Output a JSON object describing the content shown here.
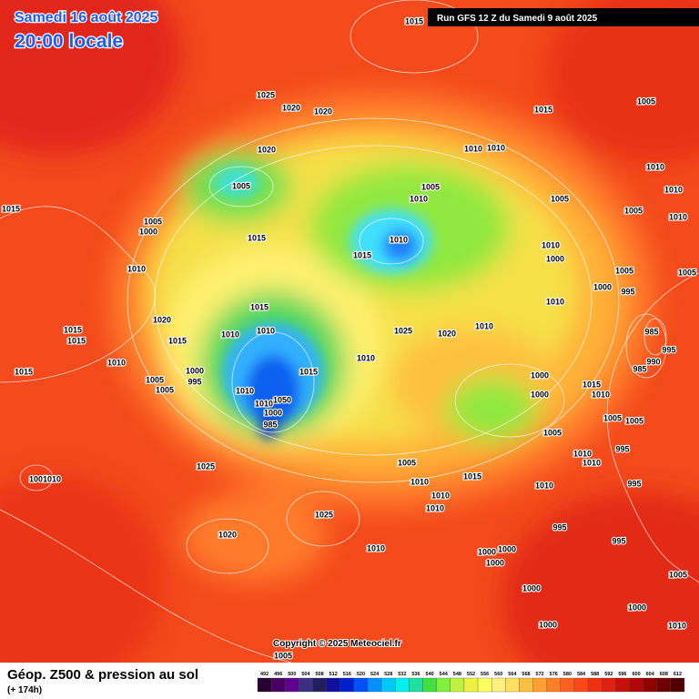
{
  "header": {
    "date": "Samedi 16 août 2025",
    "time": "20:00 locale",
    "run": "Run GFS 12 Z du Samedi 9 août 2025"
  },
  "map": {
    "isobar_labels": [
      "1015",
      "1025",
      "1020",
      "1020",
      "1015",
      "1005",
      "1020",
      "1010",
      "1010",
      "1010",
      "1005",
      "1005",
      "1010",
      "1005",
      "1010",
      "1015",
      "1005",
      "1010",
      "1005",
      "1000",
      "1015",
      "1010",
      "1010",
      "1015",
      "1000",
      "1010",
      "1005",
      "1005",
      "1000",
      "995",
      "1010",
      "1015",
      "1020",
      "1010",
      "1015",
      "1015",
      "1025",
      "1020",
      "1015",
      "1010",
      "1010",
      "985",
      "995",
      "1010",
      "1010",
      "990",
      "985",
      "1015",
      "1000",
      "1015",
      "1000",
      "1005",
      "995",
      "1005",
      "1015",
      "1010",
      "1000",
      "1010",
      "1010",
      "1050",
      "1000",
      "985",
      "1005",
      "1005",
      "1005",
      "995",
      "1010",
      "1005",
      "1010",
      "1025",
      "1015",
      "1005",
      "1010",
      "1010",
      "995",
      "1010",
      "1010",
      "1010",
      "1025",
      "995",
      "1020",
      "995",
      "1010",
      "1000",
      "1000",
      "1000",
      "1005",
      "1000",
      "1000",
      "1000",
      "1010",
      "1005"
    ],
    "copyright": "Copyright © 2025 Meteociel.fr"
  },
  "footer": {
    "title": "Géop. Z500 & pression au sol",
    "lead": "(+ 174h)"
  },
  "scale": {
    "values": [
      492,
      496,
      500,
      504,
      508,
      512,
      516,
      520,
      524,
      528,
      532,
      536,
      540,
      544,
      548,
      552,
      556,
      560,
      564,
      568,
      572,
      576,
      580,
      584,
      588,
      592,
      596,
      600,
      604,
      608,
      612
    ],
    "colors": [
      "#2a0030",
      "#4a0060",
      "#600090",
      "#3a2f80",
      "#202060",
      "#1010a0",
      "#0020d0",
      "#0050ff",
      "#0090ff",
      "#00c8ff",
      "#00f0f0",
      "#20e0a0",
      "#40e040",
      "#80f040",
      "#c0f040",
      "#f0f040",
      "#ffff60",
      "#fff080",
      "#ffe060",
      "#ffc040",
      "#ffa030",
      "#ff8028",
      "#ff6020",
      "#ff4818",
      "#f03010",
      "#e02010",
      "#c81008",
      "#b00808",
      "#900000",
      "#700000",
      "#500000"
    ]
  }
}
